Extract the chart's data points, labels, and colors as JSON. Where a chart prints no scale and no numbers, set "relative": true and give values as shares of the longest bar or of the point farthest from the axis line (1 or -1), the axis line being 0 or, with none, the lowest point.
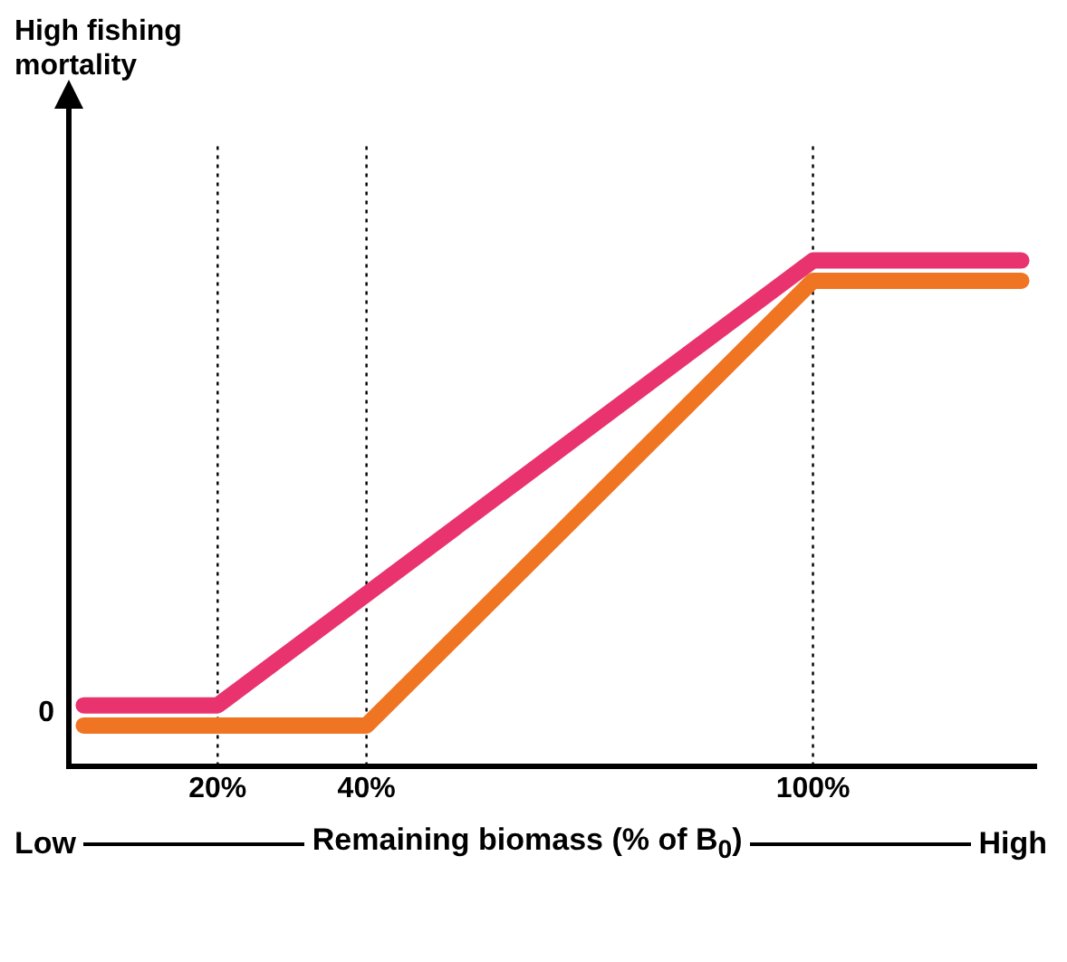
{
  "chart_data": {
    "type": "line",
    "relative": true,
    "xlabel": "Remaining biomass (% of B$_{0}$)",
    "annotations": [
      "Low",
      "High",
      "0",
      "High fishing mortality"
    ],
    "xlim": [
      0,
      130
    ],
    "xticks": [
      {
        "value": 20,
        "label": "20%"
      },
      {
        "value": 40,
        "label": "40%"
      },
      {
        "value": 100,
        "label": "100%"
      }
    ],
    "series": [
      {
        "color": "#e8336f",
        "x": [
          2,
          20,
          100,
          128
        ],
        "values": [
          0.12,
          0.12,
          1,
          1
        ]
      },
      {
        "color": "#f07522",
        "x": [
          2,
          40,
          100,
          128
        ],
        "values": [
          0.08,
          0.08,
          0.96,
          0.96
        ]
      }
    ],
    "ref_lines": [
      {
        "axis": "x",
        "value": 20,
        "color": "#000000",
        "line_style": "dotted"
      },
      {
        "axis": "x",
        "value": 40,
        "color": "#000000",
        "line_style": "dotted"
      },
      {
        "axis": "x",
        "value": 100,
        "color": "#000000",
        "line_style": "dotted"
      }
    ],
    "grid": false,
    "legend": false,
    "marker": "none",
    "line_style": "solid"
  }
}
